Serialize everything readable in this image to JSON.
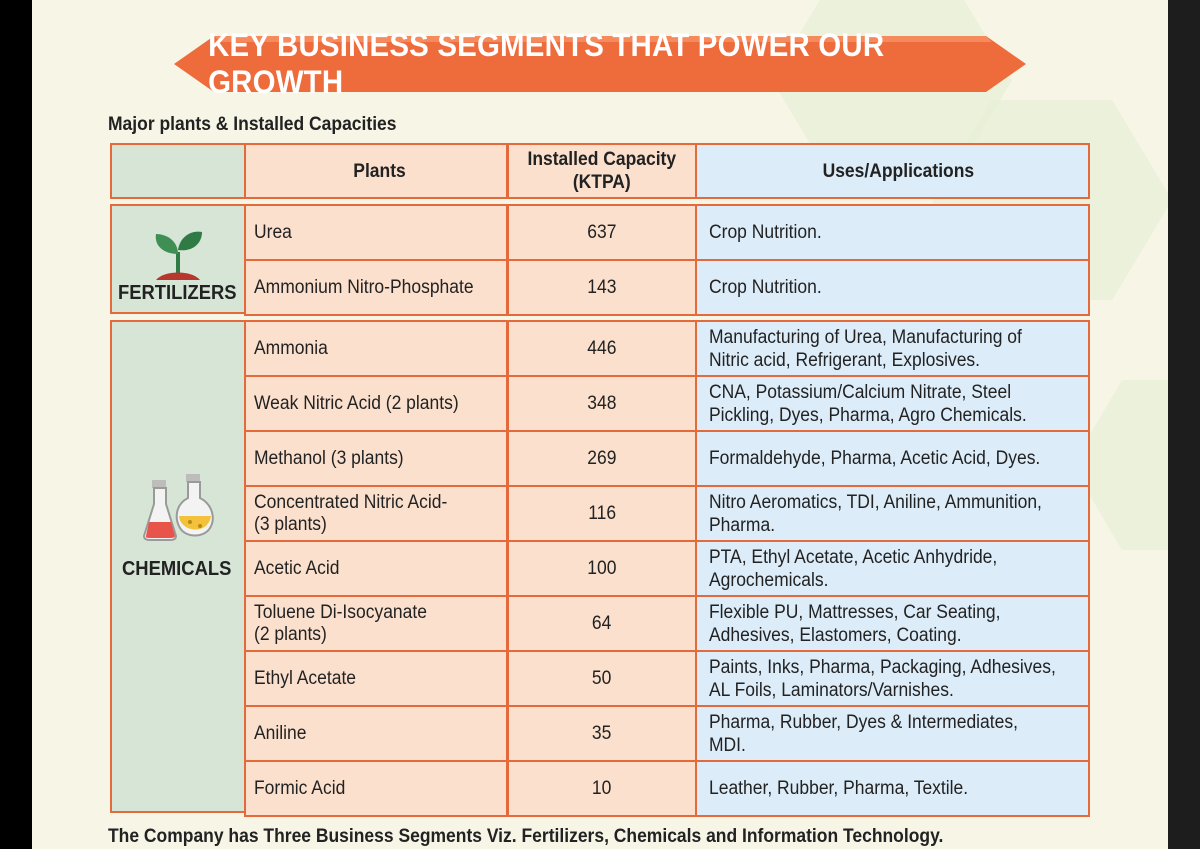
{
  "banner": {
    "title": "KEY BUSINESS SEGMENTS THAT POWER OUR GROWTH"
  },
  "subtitle": "Major plants & Installed Capacities",
  "table": {
    "headers": {
      "plants": "Plants",
      "capacity": "Installed Capacity\n(KTPA)",
      "uses": "Uses/Applications"
    },
    "segments": [
      {
        "name": "FERTILIZERS",
        "icon": "seedling-icon",
        "rows": [
          {
            "plant": "Urea",
            "capacity": "637",
            "uses": "Crop Nutrition."
          },
          {
            "plant": "Ammonium Nitro-Phosphate",
            "capacity": "143",
            "uses": "Crop Nutrition."
          }
        ]
      },
      {
        "name": "CHEMICALS",
        "icon": "lab-flasks-icon",
        "rows": [
          {
            "plant": "Ammonia",
            "capacity": "446",
            "uses": "Manufacturing of Urea, Manufacturing of\nNitric acid, Refrigerant, Explosives."
          },
          {
            "plant": "Weak Nitric Acid (2 plants)",
            "capacity": "348",
            "uses": "CNA, Potassium/Calcium Nitrate, Steel\nPickling, Dyes, Pharma, Agro Chemicals."
          },
          {
            "plant": "Methanol (3 plants)",
            "capacity": "269",
            "uses": "Formaldehyde, Pharma, Acetic Acid, Dyes."
          },
          {
            "plant": "Concentrated Nitric Acid-\n(3 plants)",
            "capacity": "116",
            "uses": "Nitro Aeromatics, TDI, Aniline, Ammunition,\nPharma."
          },
          {
            "plant": "Acetic Acid",
            "capacity": "100",
            "uses": "PTA, Ethyl Acetate, Acetic Anhydride,\nAgrochemicals."
          },
          {
            "plant": "Toluene Di-Isocyanate\n(2 plants)",
            "capacity": "64",
            "uses": "Flexible PU, Mattresses, Car Seating,\nAdhesives, Elastomers, Coating."
          },
          {
            "plant": "Ethyl Acetate",
            "capacity": "50",
            "uses": "Paints, Inks, Pharma, Packaging, Adhesives,\nAL Foils, Laminators/Varnishes."
          },
          {
            "plant": "Aniline",
            "capacity": "35",
            "uses": "Pharma, Rubber, Dyes & Intermediates, MDI."
          },
          {
            "plant": "Formic Acid",
            "capacity": "10",
            "uses": "Leather, Rubber, Pharma, Textile."
          }
        ]
      }
    ]
  },
  "colors": {
    "banner": "#ee6b3b",
    "border": "#e46a3c",
    "segment_bg": "#d6e5d5",
    "plant_bg": "#fbe0cd",
    "uses_bg": "#dcecf8"
  },
  "footer": "The Company has Three Business Segments Viz. Fertilizers, Chemicals and Information Technology."
}
